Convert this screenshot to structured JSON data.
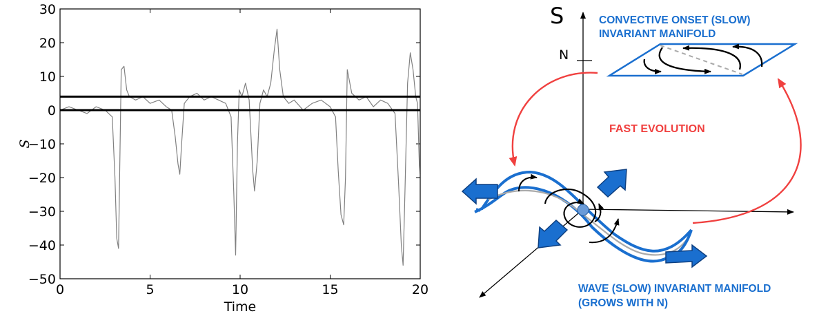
{
  "chart_data": [
    {
      "type": "line",
      "title": "",
      "xlabel": "Time",
      "ylabel": "S",
      "xlim": [
        0,
        20
      ],
      "ylim": [
        -50,
        30
      ],
      "xticks": [
        0,
        5,
        10,
        15,
        20
      ],
      "yticks": [
        30,
        20,
        10,
        0,
        -10,
        -20,
        -30,
        -40,
        -50
      ],
      "ytick_labels": [
        "30",
        "20",
        "10",
        "0",
        "−10",
        "−20",
        "−30",
        "−40",
        "−50"
      ],
      "grid": false,
      "hlines": [
        {
          "y": 4,
          "color": "#000000"
        },
        {
          "y": 0,
          "color": "#000000"
        }
      ],
      "series": [
        {
          "color": "#808080",
          "x": [
            0,
            0.5,
            1.0,
            1.5,
            2.0,
            2.5,
            2.9,
            3.05,
            3.15,
            3.25,
            3.4,
            3.55,
            3.7,
            3.85,
            4.2,
            4.6,
            5.0,
            5.5,
            5.9,
            6.2,
            6.4,
            6.55,
            6.65,
            6.75,
            6.9,
            7.2,
            7.6,
            8.0,
            8.4,
            8.8,
            9.2,
            9.5,
            9.65,
            9.75,
            9.85,
            9.95,
            10.1,
            10.3,
            10.5,
            10.7,
            10.8,
            10.95,
            11.1,
            11.3,
            11.5,
            11.7,
            11.9,
            12.05,
            12.2,
            12.4,
            12.7,
            13.0,
            13.5,
            14.0,
            14.5,
            15.0,
            15.3,
            15.45,
            15.6,
            15.75,
            15.85,
            15.95,
            16.2,
            16.6,
            17.0,
            17.4,
            17.8,
            18.2,
            18.6,
            18.8,
            18.95,
            19.05,
            19.15,
            19.3,
            19.45,
            19.6,
            19.75,
            19.85,
            19.95,
            20.0
          ],
          "y": [
            0,
            1,
            0,
            -1,
            1,
            0,
            -2,
            -20,
            -38,
            -41,
            12,
            13,
            6,
            4,
            3,
            4,
            2,
            3,
            1,
            0,
            -8,
            -16,
            -19,
            -10,
            2,
            4,
            5,
            3,
            4,
            3,
            2,
            -2,
            -25,
            -43,
            -10,
            6,
            4,
            8,
            3,
            -18,
            -24,
            -15,
            2,
            6,
            4,
            8,
            18,
            24,
            12,
            4,
            2,
            3,
            0,
            2,
            3,
            1,
            -2,
            -18,
            -31,
            -34,
            -20,
            12,
            5,
            3,
            4,
            1,
            3,
            2,
            -1,
            -22,
            -40,
            -46,
            -25,
            8,
            17,
            12,
            4,
            2,
            -16,
            -19
          ]
        }
      ]
    }
  ],
  "schematic": {
    "s_axis_label": "S",
    "n_label": "N",
    "convective_label_line1": "CONVECTIVE ONSET (SLOW)",
    "convective_label_line2": "INVARIANT MANIFOLD",
    "fast_evolution_label": "FAST EVOLUTION",
    "wave_label_line1": "WAVE (SLOW) INVARIANT MANIFOLD",
    "wave_label_line2": "(GROWS WITH N)"
  },
  "colors": {
    "manifold_blue": "#1a6fcf",
    "arrow_blue": "#1a6fcf",
    "fast_red": "#f0403f",
    "fixed_point": "#6a9bd8",
    "trace_gray": "#808080"
  }
}
